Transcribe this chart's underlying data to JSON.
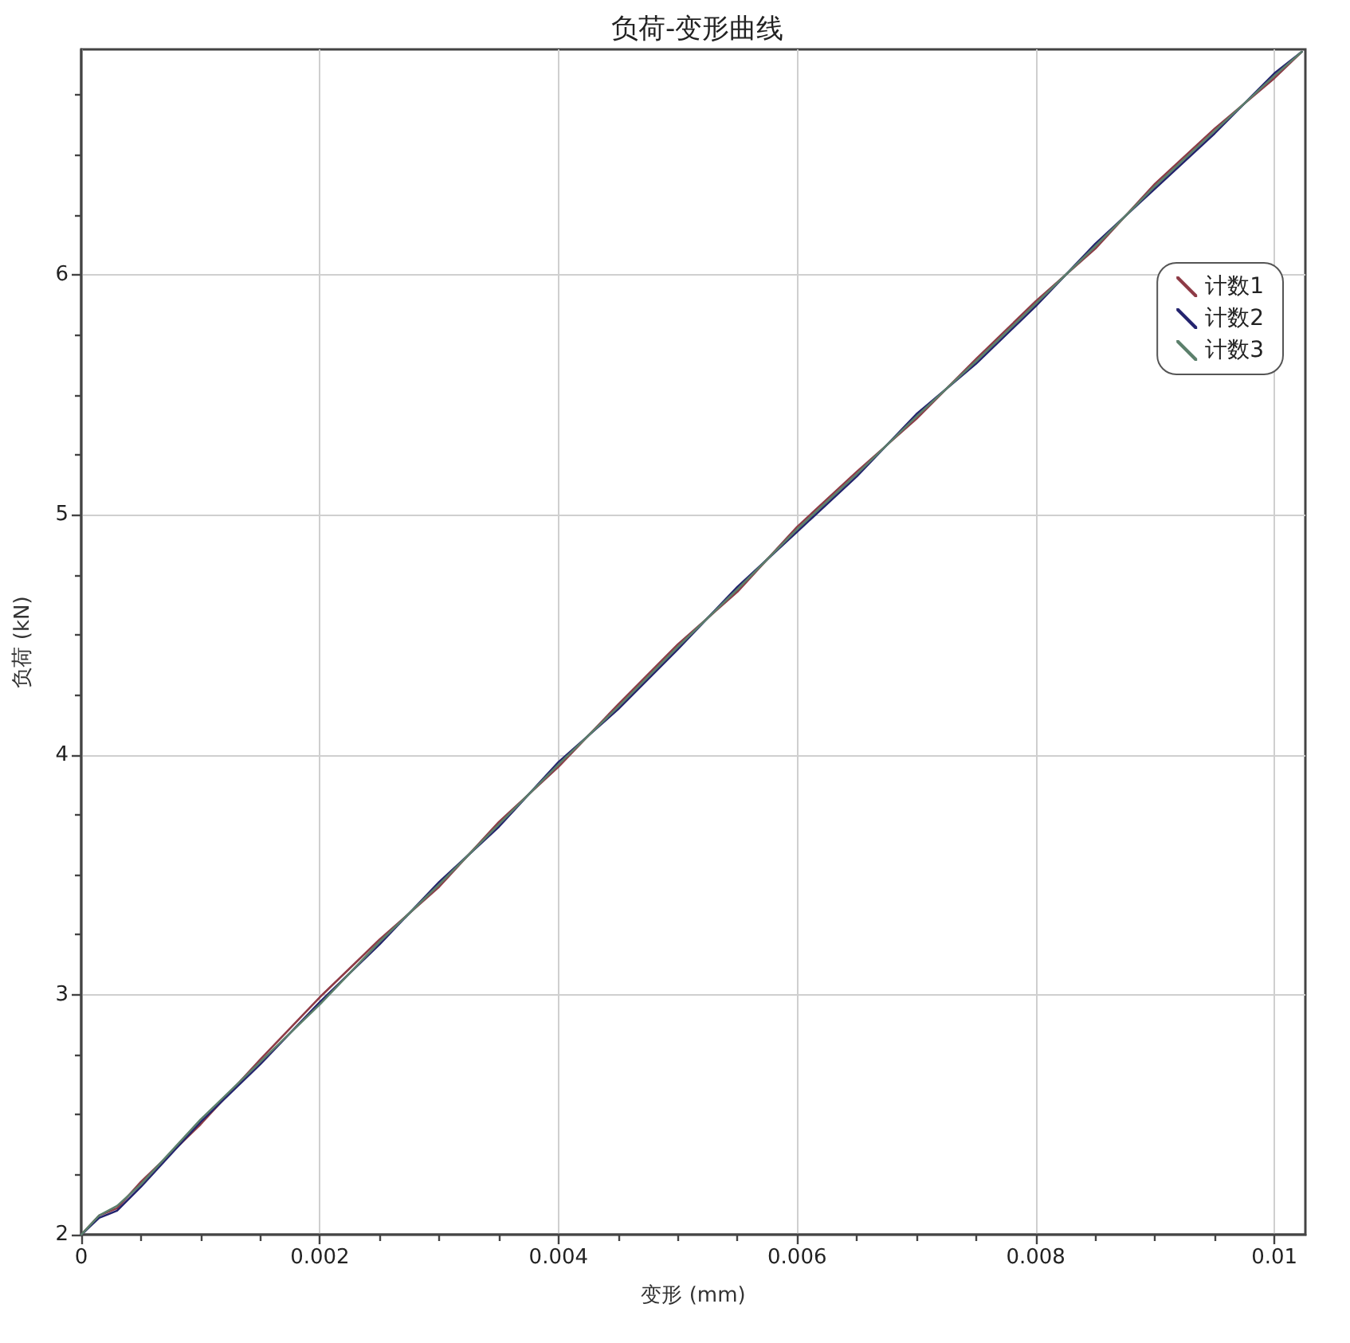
{
  "chart_data": {
    "type": "line",
    "title": "负荷-变形曲线",
    "xlabel": "变形 (mm)",
    "ylabel": "负荷 (kN)",
    "x": [
      0,
      0.00015,
      0.0003,
      0.0005,
      0.001,
      0.0015,
      0.002,
      0.0025,
      0.003,
      0.0035,
      0.004,
      0.0045,
      0.005,
      0.0055,
      0.006,
      0.0065,
      0.007,
      0.0075,
      0.008,
      0.0085,
      0.009,
      0.0095,
      0.01,
      0.01023
    ],
    "series": [
      {
        "name": "计数1",
        "color": "#8e3b46",
        "values": [
          2.0,
          2.08,
          2.11,
          2.22,
          2.46,
          2.73,
          2.99,
          3.23,
          3.45,
          3.72,
          3.95,
          4.21,
          4.46,
          4.68,
          4.95,
          5.18,
          5.4,
          5.65,
          5.89,
          6.11,
          6.38,
          6.61,
          6.82,
          6.93
        ]
      },
      {
        "name": "计数2",
        "color": "#23236e",
        "values": [
          2.0,
          2.07,
          2.1,
          2.2,
          2.47,
          2.71,
          2.97,
          3.21,
          3.47,
          3.7,
          3.97,
          4.19,
          4.44,
          4.7,
          4.93,
          5.16,
          5.42,
          5.63,
          5.87,
          6.13,
          6.36,
          6.59,
          6.84,
          6.93
        ]
      },
      {
        "name": "计数3",
        "color": "#5b7f6b",
        "values": [
          2.0,
          2.08,
          2.12,
          2.21,
          2.48,
          2.72,
          2.96,
          3.22,
          3.46,
          3.71,
          3.96,
          4.2,
          4.45,
          4.69,
          4.94,
          5.17,
          5.41,
          5.64,
          5.88,
          6.12,
          6.37,
          6.6,
          6.83,
          6.93
        ]
      }
    ],
    "xlim": [
      0,
      0.01026
    ],
    "xticks": [
      0,
      {
        "value": 0.0005,
        "label": null
      },
      {
        "value": 0.001,
        "label": null
      },
      {
        "value": 0.0015,
        "label": null
      },
      0.002,
      {
        "value": 0.0025,
        "label": null
      },
      {
        "value": 0.003,
        "label": null
      },
      {
        "value": 0.0035,
        "label": null
      },
      0.004,
      {
        "value": 0.0045,
        "label": null
      },
      {
        "value": 0.005,
        "label": null
      },
      {
        "value": 0.0055,
        "label": null
      },
      0.006,
      {
        "value": 0.0065,
        "label": null
      },
      {
        "value": 0.007,
        "label": null
      },
      {
        "value": 0.0075,
        "label": null
      },
      0.008,
      {
        "value": 0.0085,
        "label": null
      },
      {
        "value": 0.009,
        "label": null
      },
      {
        "value": 0.0095,
        "label": null
      },
      0.01
    ],
    "ylim": [
      2,
      6.94
    ],
    "yticks": [
      2,
      {
        "value": 2.25,
        "label": null
      },
      {
        "value": 2.5,
        "label": null
      },
      {
        "value": 2.75,
        "label": null
      },
      3,
      {
        "value": 3.25,
        "label": null
      },
      {
        "value": 3.5,
        "label": null
      },
      {
        "value": 3.75,
        "label": null
      },
      4,
      {
        "value": 4.25,
        "label": null
      },
      {
        "value": 4.5,
        "label": null
      },
      {
        "value": 4.75,
        "label": null
      },
      5,
      {
        "value": 5.25,
        "label": null
      },
      {
        "value": 5.5,
        "label": null
      },
      {
        "value": 5.75,
        "label": null
      },
      6,
      {
        "value": 6.25,
        "label": null
      },
      {
        "value": 6.5,
        "label": null
      },
      {
        "value": 6.75,
        "label": null
      }
    ],
    "grid": true,
    "legend": "top right",
    "line_style": "solid"
  }
}
